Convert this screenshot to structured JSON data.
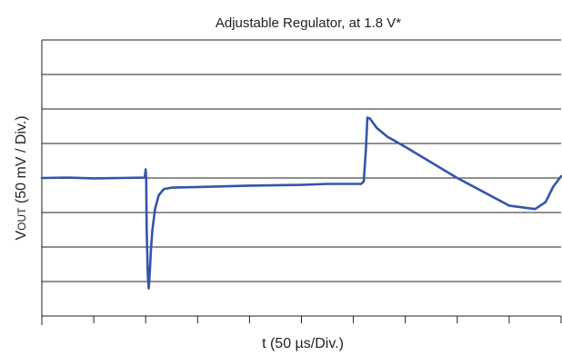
{
  "chart_data": {
    "type": "line",
    "title": "Adjustable Regulator, at 1.8 V*",
    "xlabel": "t (50 µs/Div.)",
    "ylabel": {
      "prefix": "V",
      "subscript": "OUT",
      "suffix": " (50 mV / Div.)"
    },
    "x_unit": "div",
    "y_unit": "div",
    "xlim": [
      0,
      10
    ],
    "ylim": [
      -4,
      4
    ],
    "x_ticks": [
      0,
      1,
      2,
      3,
      4,
      5,
      6,
      7,
      8,
      9,
      10
    ],
    "y_gridlines": [
      -4,
      -3,
      -2,
      -1,
      0,
      1,
      2,
      3,
      4
    ],
    "grid": true,
    "series": [
      {
        "color": "#3355aa",
        "points": [
          [
            0.0,
            0.0
          ],
          [
            0.5,
            0.01
          ],
          [
            1.0,
            -0.01
          ],
          [
            1.5,
            0.0
          ],
          [
            1.98,
            0.01
          ],
          [
            2.0,
            0.25
          ],
          [
            2.01,
            -0.05
          ],
          [
            2.02,
            -1.5
          ],
          [
            2.04,
            -2.8
          ],
          [
            2.06,
            -3.2
          ],
          [
            2.08,
            -2.7
          ],
          [
            2.1,
            -2.1
          ],
          [
            2.13,
            -1.5
          ],
          [
            2.18,
            -0.9
          ],
          [
            2.25,
            -0.5
          ],
          [
            2.35,
            -0.32
          ],
          [
            2.5,
            -0.28
          ],
          [
            3.0,
            -0.26
          ],
          [
            4.0,
            -0.22
          ],
          [
            5.0,
            -0.2
          ],
          [
            5.5,
            -0.17
          ],
          [
            6.15,
            -0.17
          ],
          [
            6.2,
            -0.1
          ],
          [
            6.24,
            0.8
          ],
          [
            6.27,
            1.75
          ],
          [
            6.32,
            1.72
          ],
          [
            6.45,
            1.45
          ],
          [
            6.65,
            1.2
          ],
          [
            7.0,
            0.9
          ],
          [
            8.0,
            0.0
          ],
          [
            9.0,
            -0.8
          ],
          [
            9.5,
            -0.9
          ],
          [
            9.7,
            -0.7
          ],
          [
            9.85,
            -0.25
          ],
          [
            10.0,
            0.05
          ]
        ]
      }
    ]
  }
}
